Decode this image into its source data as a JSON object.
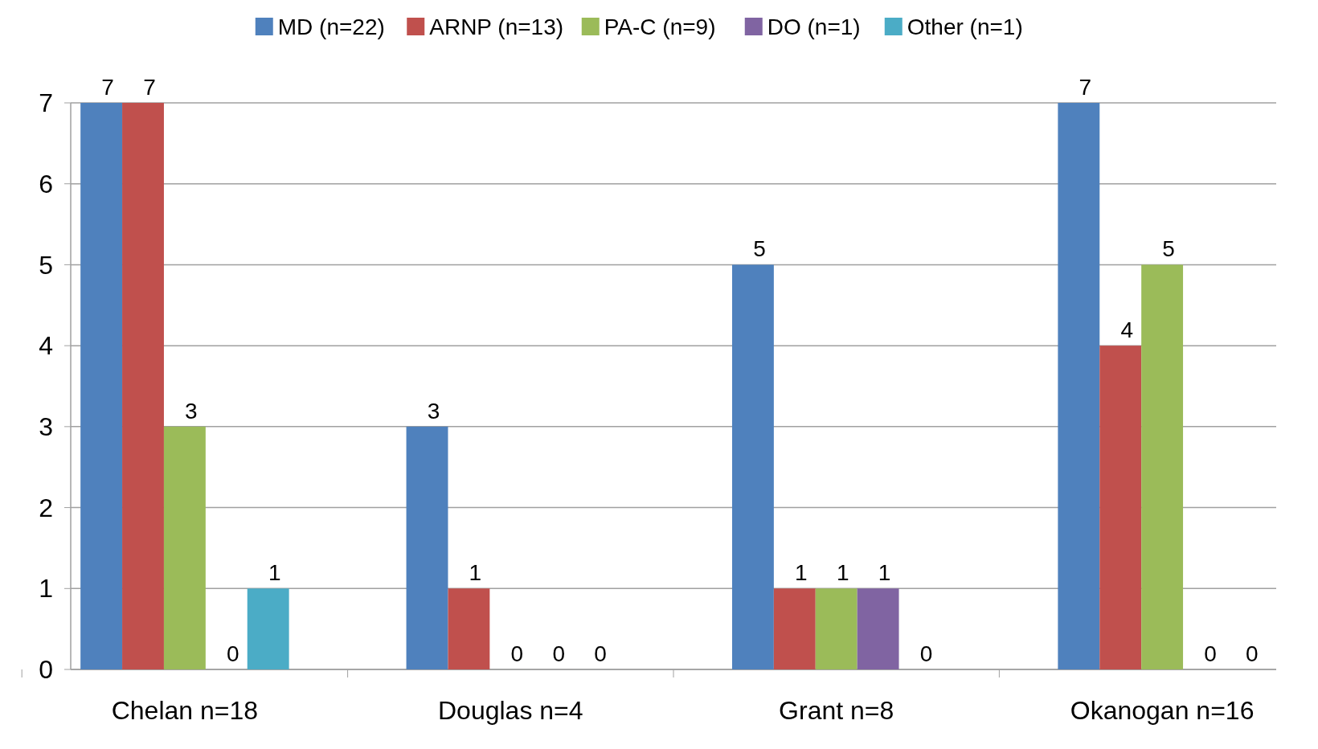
{
  "chart_data": {
    "type": "bar",
    "categories": [
      "Chelan n=18",
      "Douglas n=4",
      "Grant n=8",
      "Okanogan n=16"
    ],
    "series": [
      {
        "name": "MD (n=22)",
        "color": "#4f81bd",
        "values": [
          7,
          3,
          5,
          7
        ]
      },
      {
        "name": "ARNP (n=13)",
        "color": "#c0504d",
        "values": [
          7,
          1,
          1,
          4
        ]
      },
      {
        "name": "PA-C (n=9)",
        "color": "#9bbb59",
        "values": [
          3,
          0,
          1,
          5
        ]
      },
      {
        "name": "DO (n=1)",
        "color": "#8064a2",
        "values": [
          0,
          0,
          1,
          0
        ]
      },
      {
        "name": "Other (n=1)",
        "color": "#4bacc6",
        "values": [
          1,
          0,
          0,
          0
        ]
      }
    ],
    "ylim": [
      0,
      7
    ],
    "yticks": [
      0,
      1,
      2,
      3,
      4,
      5,
      6,
      7
    ],
    "grid": "y",
    "legend": "top",
    "data_labels": true
  }
}
